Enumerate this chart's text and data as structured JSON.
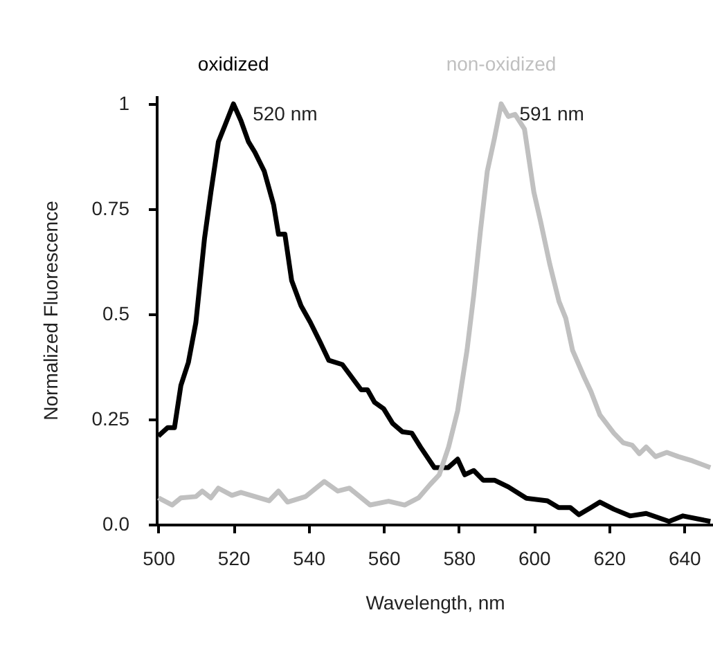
{
  "chart_data": {
    "type": "line",
    "xlabel": "Wavelength, nm",
    "ylabel": "Normalized Fluorescence",
    "xlim": [
      499.5,
      647.7
    ],
    "ylim": [
      0,
      1.02
    ],
    "xticks": [
      500,
      520,
      540,
      560,
      580,
      600,
      620,
      640
    ],
    "yticks": [
      {
        "value": 0,
        "label": "0.0"
      },
      0.25,
      0.5,
      0.75,
      1
    ],
    "grid": false,
    "legend": false,
    "line_style": "solid",
    "marker": "none",
    "annotations": [
      {
        "text": "520 nm",
        "x": 520,
        "y": 1
      },
      {
        "text": "591 nm",
        "x": 591,
        "y": 1
      }
    ],
    "series": [
      {
        "name": "oxidized",
        "color": "#000000",
        "x": [
          500,
          502.5,
          504.3,
          506,
          508,
          510,
          512.3,
          514,
          516,
          517.8,
          520,
          522,
          524,
          525.7,
          528.2,
          530.7,
          532,
          533.7,
          535.5,
          538,
          540.5,
          543,
          545.4,
          549,
          551.5,
          554,
          555.7,
          557.6,
          560,
          562.4,
          565,
          567.5,
          569.8,
          573.5,
          577.2,
          579.7,
          581.6,
          584,
          586.5,
          589.5,
          593.2,
          598,
          603.6,
          606.6,
          609.7,
          612,
          615.2,
          617.6,
          621.3,
          625.6,
          629.9,
          636,
          639.7,
          647
        ],
        "values": [
          0.21,
          0.23,
          0.23,
          0.33,
          0.385,
          0.48,
          0.68,
          0.79,
          0.91,
          0.95,
          1.0,
          0.96,
          0.91,
          0.885,
          0.84,
          0.76,
          0.69,
          0.69,
          0.58,
          0.52,
          0.48,
          0.435,
          0.39,
          0.38,
          0.35,
          0.32,
          0.32,
          0.29,
          0.275,
          0.24,
          0.22,
          0.217,
          0.184,
          0.135,
          0.135,
          0.155,
          0.118,
          0.128,
          0.105,
          0.105,
          0.089,
          0.062,
          0.056,
          0.04,
          0.04,
          0.023,
          0.04,
          0.053,
          0.036,
          0.02,
          0.026,
          0.007,
          0.02,
          0.007
        ]
      },
      {
        "name": "non-oxidized",
        "color": "#c0c0c0",
        "x": [
          500,
          503.7,
          506,
          510,
          511.7,
          514,
          516,
          519.6,
          522,
          529.5,
          532,
          534.4,
          539.2,
          544.2,
          547.8,
          550.9,
          556.4,
          561.3,
          565.6,
          569.3,
          572.4,
          574.8,
          577.3,
          579.7,
          582.2,
          584,
          585.8,
          587.6,
          589.5,
          591.3,
          593.2,
          595,
          597.5,
          600,
          601.8,
          604.2,
          606.7,
          608.5,
          610.3,
          613.4,
          615.2,
          617.6,
          621.3,
          623.8,
          626.2,
          628.1,
          629.9,
          632.4,
          635.4,
          638.5,
          642.2,
          647
        ],
        "values": [
          0.063,
          0.046,
          0.063,
          0.066,
          0.079,
          0.063,
          0.086,
          0.069,
          0.076,
          0.056,
          0.079,
          0.053,
          0.066,
          0.102,
          0.079,
          0.086,
          0.046,
          0.055,
          0.046,
          0.063,
          0.095,
          0.118,
          0.184,
          0.27,
          0.414,
          0.546,
          0.7,
          0.84,
          0.918,
          1.0,
          0.97,
          0.975,
          0.94,
          0.79,
          0.72,
          0.62,
          0.53,
          0.49,
          0.414,
          0.35,
          0.316,
          0.26,
          0.217,
          0.194,
          0.188,
          0.168,
          0.184,
          0.161,
          0.171,
          0.161,
          0.151,
          0.135
        ]
      }
    ]
  }
}
